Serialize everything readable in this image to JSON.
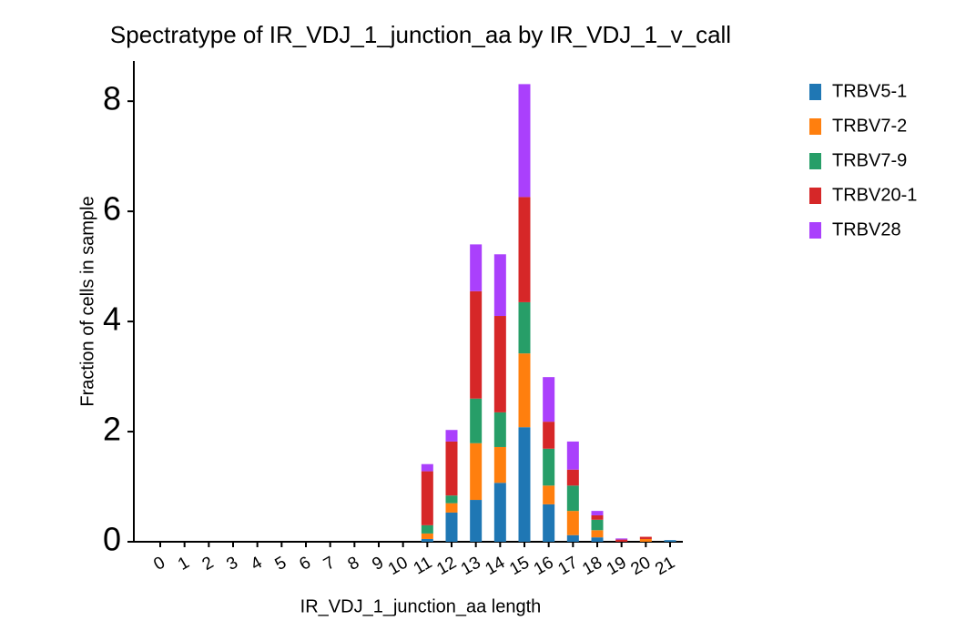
{
  "chart_data": {
    "type": "stacked_bar",
    "title": "Spectratype of IR_VDJ_1_junction_aa by IR_VDJ_1_v_call",
    "x_label": "IR_VDJ_1_junction_aa length",
    "y_label": "Fraction of cells in sample",
    "categories": [
      "0",
      "1",
      "2",
      "3",
      "4",
      "5",
      "6",
      "7",
      "8",
      "9",
      "10",
      "11",
      "12",
      "13",
      "14",
      "15",
      "16",
      "17",
      "18",
      "19",
      "20",
      "21"
    ],
    "series": [
      {
        "name": "TRBV5-1",
        "color": "#1f77b4",
        "values": [
          0,
          0,
          0,
          0,
          0,
          0,
          0,
          0,
          0,
          0,
          0,
          0.05,
          0.53,
          0.76,
          1.07,
          2.08,
          0.68,
          0.12,
          0.08,
          0,
          0,
          0.03
        ]
      },
      {
        "name": "TRBV7-2",
        "color": "#ff7f0e",
        "values": [
          0,
          0,
          0,
          0,
          0,
          0,
          0,
          0,
          0,
          0,
          0,
          0.1,
          0.17,
          1.03,
          0.65,
          1.34,
          0.34,
          0.44,
          0.13,
          0,
          0.05,
          0
        ]
      },
      {
        "name": "TRBV7-9",
        "color": "#279e68",
        "values": [
          0,
          0,
          0,
          0,
          0,
          0,
          0,
          0,
          0,
          0,
          0,
          0.15,
          0.14,
          0.81,
          0.63,
          0.93,
          0.67,
          0.46,
          0.19,
          0,
          0,
          0
        ]
      },
      {
        "name": "TRBV20-1",
        "color": "#d62728",
        "values": [
          0,
          0,
          0,
          0,
          0,
          0,
          0,
          0,
          0,
          0,
          0,
          0.98,
          0.98,
          1.95,
          1.75,
          1.91,
          0.49,
          0.29,
          0.08,
          0.04,
          0.04,
          0
        ]
      },
      {
        "name": "TRBV28",
        "color": "#aa40fc",
        "values": [
          0,
          0,
          0,
          0,
          0,
          0,
          0,
          0,
          0,
          0,
          0,
          0.13,
          0.21,
          0.85,
          1.12,
          2.05,
          0.81,
          0.51,
          0.08,
          0.02,
          0,
          0
        ]
      }
    ],
    "ylim": [
      0,
      8.73
    ],
    "yticks": [
      0,
      2,
      4,
      6,
      8
    ],
    "grid": false,
    "legend": "right"
  }
}
